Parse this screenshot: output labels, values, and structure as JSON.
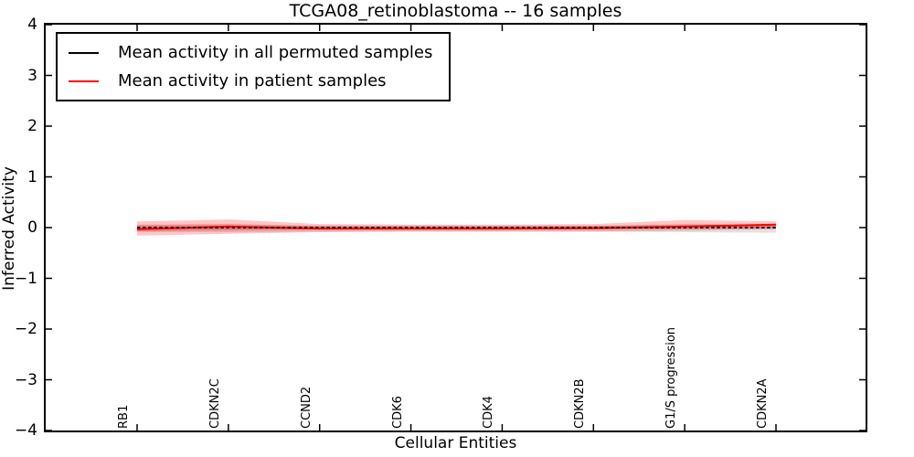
{
  "figure": {
    "background": "#ffffff",
    "text_color": "#000000"
  },
  "chart_data": {
    "type": "line",
    "title": "TCGA08_retinoblastoma -- 16 samples",
    "xlabel": "Cellular Entities",
    "ylabel": "Inferred Activity",
    "ylim": [
      -4,
      4
    ],
    "xtick_rotation": "vertical",
    "grid": false,
    "legend_position": "upper left",
    "ytick_values": [
      4,
      3,
      2,
      1,
      0,
      -1,
      -2,
      -3,
      -4
    ],
    "ytick_labels": [
      "4",
      "3",
      "2",
      "1",
      "0",
      "−1",
      "−2",
      "−3",
      "−4"
    ],
    "categories": [
      "RB1",
      "CDKN2C",
      "CCND2",
      "CDK6",
      "CDK4",
      "CDKN2B",
      "G1/S progression",
      "CDKN2A"
    ],
    "series": [
      {
        "name": "Mean activity in all permuted samples",
        "color": "#000000",
        "line_style": "dashed",
        "values": [
          0,
          0,
          0,
          0,
          0,
          0,
          0,
          0
        ],
        "band_upper": [
          0.04,
          0.04,
          0.04,
          0.04,
          0.04,
          0.04,
          0.04,
          0.04
        ],
        "band_lower": [
          -0.09,
          -0.09,
          -0.08,
          -0.08,
          -0.08,
          -0.08,
          -0.09,
          -0.1
        ],
        "band_color": "#c8c8c8"
      },
      {
        "name": "Mean activity in patient samples",
        "color": "#ff0000",
        "line_style": "solid",
        "values": [
          -0.03,
          0.02,
          -0.02,
          -0.02,
          -0.02,
          -0.01,
          0.02,
          0.06
        ],
        "band_upper": [
          0.12,
          0.16,
          0.07,
          0.06,
          0.06,
          0.07,
          0.15,
          0.12
        ],
        "band_lower": [
          -0.16,
          -0.12,
          -0.09,
          -0.08,
          -0.08,
          -0.08,
          -0.06,
          -0.03
        ],
        "band_color": "#ff0000"
      }
    ]
  }
}
